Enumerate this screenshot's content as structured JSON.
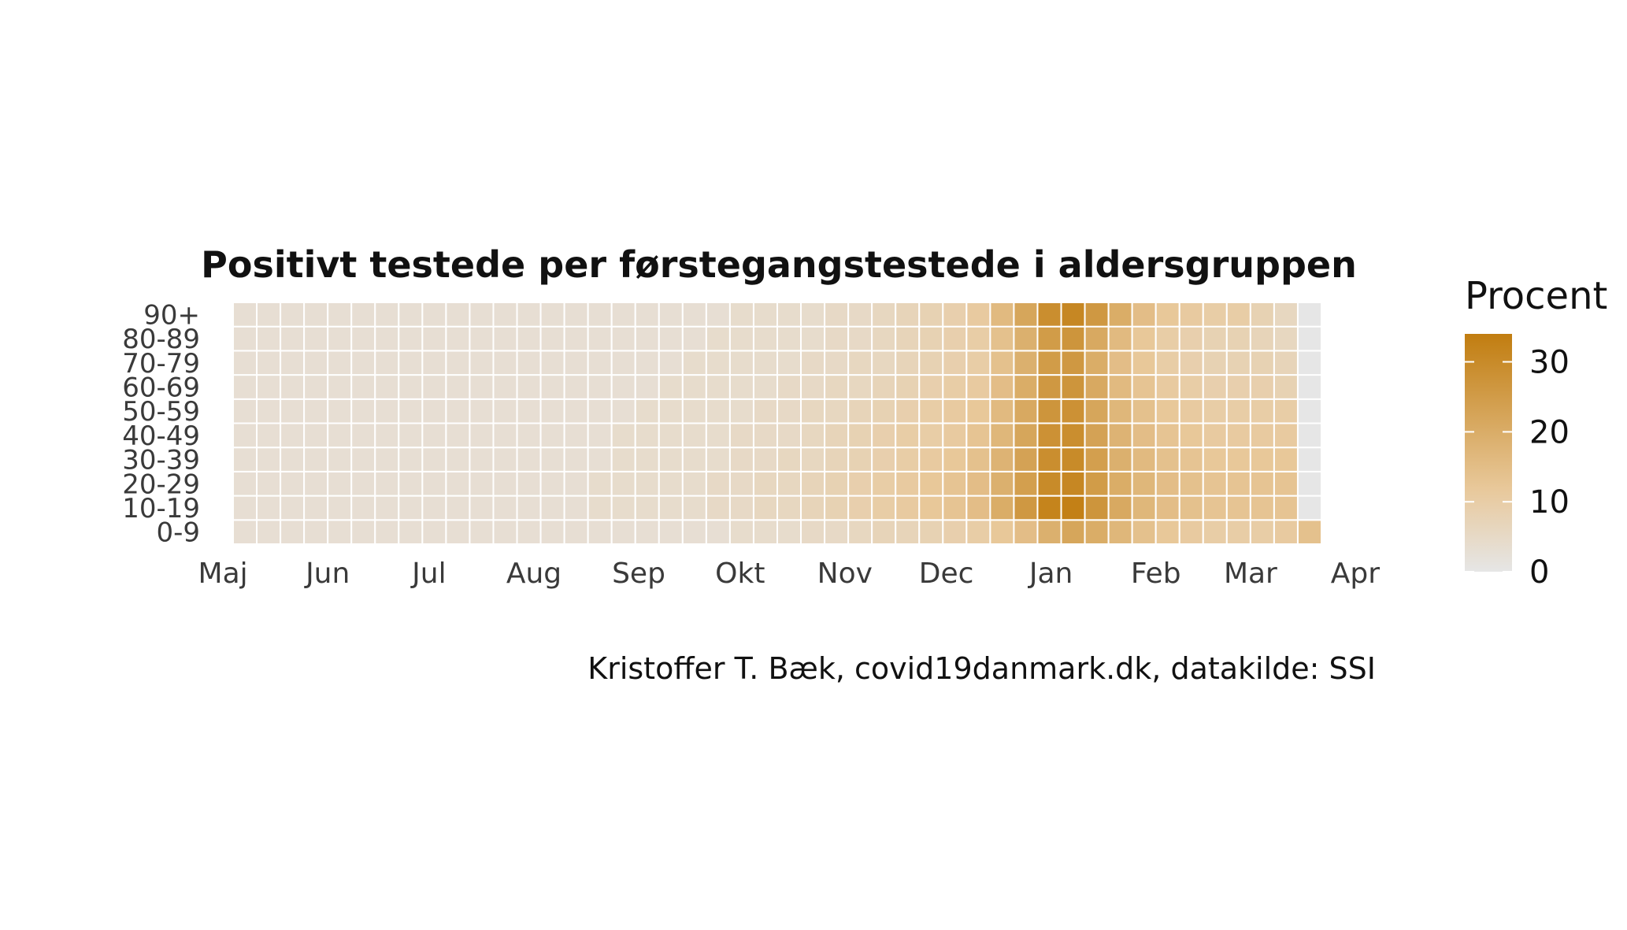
{
  "chart_data": {
    "type": "heatmap",
    "title": "Positivt testede per førstegangstestede i aldersgruppen",
    "caption": "Kristoffer T. Bæk, covid19danmark.dk, datakilde: SSI",
    "xlabel": "",
    "ylabel": "",
    "x_tick_labels": [
      "Maj",
      "Jun",
      "Jul",
      "Aug",
      "Sep",
      "Okt",
      "Nov",
      "Dec",
      "Jan",
      "Feb",
      "Mar",
      "Apr"
    ],
    "x_tick_dates": [
      "2020-05-01",
      "2020-06-01",
      "2020-07-01",
      "2020-08-01",
      "2020-09-01",
      "2020-10-01",
      "2020-11-01",
      "2020-12-01",
      "2021-01-01",
      "2021-02-01",
      "2021-03-01",
      "2021-04-01"
    ],
    "x_weeks": [
      "2020-05-04",
      "2020-05-11",
      "2020-05-18",
      "2020-05-25",
      "2020-06-01",
      "2020-06-08",
      "2020-06-15",
      "2020-06-22",
      "2020-06-29",
      "2020-07-06",
      "2020-07-13",
      "2020-07-20",
      "2020-07-27",
      "2020-08-03",
      "2020-08-10",
      "2020-08-17",
      "2020-08-24",
      "2020-08-31",
      "2020-09-07",
      "2020-09-14",
      "2020-09-21",
      "2020-09-28",
      "2020-10-05",
      "2020-10-12",
      "2020-10-19",
      "2020-10-26",
      "2020-11-02",
      "2020-11-09",
      "2020-11-16",
      "2020-11-23",
      "2020-11-30",
      "2020-12-07",
      "2020-12-14",
      "2020-12-21",
      "2020-12-28",
      "2021-01-04",
      "2021-01-11",
      "2021-01-18",
      "2021-01-25",
      "2021-02-01",
      "2021-02-08",
      "2021-02-15",
      "2021-02-22",
      "2021-03-01",
      "2021-03-08",
      "2021-03-15"
    ],
    "age_groups": [
      "0-9",
      "10-19",
      "20-29",
      "30-39",
      "40-49",
      "50-59",
      "60-69",
      "70-79",
      "80-89",
      "90+"
    ],
    "values": [
      [
        3,
        3,
        3,
        3,
        3,
        3,
        3,
        3,
        3,
        3,
        3,
        3,
        3,
        3,
        3,
        3,
        3,
        3,
        3,
        3,
        3,
        4,
        4,
        4,
        5,
        5,
        6,
        7,
        7,
        8,
        9,
        10,
        12,
        15,
        19,
        22,
        20,
        17,
        14,
        12,
        11,
        10,
        10,
        10,
        11,
        14
      ],
      [
        3,
        3,
        3,
        3,
        3,
        3,
        3,
        3,
        3,
        3,
        3,
        3,
        3,
        3,
        3,
        4,
        4,
        4,
        4,
        4,
        5,
        5,
        6,
        6,
        7,
        8,
        9,
        10,
        11,
        12,
        13,
        15,
        20,
        26,
        32,
        33,
        27,
        21,
        17,
        15,
        14,
        13,
        13,
        13,
        13,
        0
      ],
      [
        3,
        3,
        3,
        3,
        3,
        3,
        3,
        3,
        3,
        3,
        3,
        3,
        3,
        3,
        3,
        4,
        4,
        4,
        4,
        4,
        5,
        5,
        6,
        6,
        7,
        8,
        9,
        10,
        11,
        12,
        13,
        15,
        19,
        24,
        30,
        31,
        25,
        20,
        17,
        15,
        14,
        13,
        13,
        13,
        13,
        0
      ],
      [
        3,
        3,
        3,
        3,
        3,
        3,
        3,
        3,
        3,
        3,
        3,
        3,
        3,
        3,
        3,
        3,
        4,
        4,
        4,
        4,
        4,
        5,
        5,
        6,
        6,
        7,
        8,
        9,
        10,
        11,
        12,
        14,
        18,
        23,
        29,
        30,
        24,
        19,
        16,
        14,
        13,
        12,
        12,
        12,
        12,
        0
      ],
      [
        3,
        3,
        3,
        3,
        3,
        3,
        3,
        3,
        3,
        3,
        3,
        3,
        3,
        3,
        3,
        3,
        4,
        4,
        4,
        4,
        4,
        5,
        5,
        5,
        6,
        7,
        8,
        9,
        10,
        10,
        11,
        13,
        17,
        22,
        28,
        29,
        23,
        18,
        15,
        13,
        12,
        11,
        11,
        11,
        11,
        0
      ],
      [
        3,
        3,
        3,
        3,
        3,
        3,
        3,
        3,
        3,
        3,
        3,
        3,
        3,
        3,
        3,
        3,
        3,
        4,
        4,
        4,
        4,
        4,
        5,
        5,
        6,
        6,
        7,
        8,
        9,
        10,
        11,
        12,
        16,
        21,
        27,
        28,
        22,
        17,
        14,
        12,
        11,
        10,
        10,
        10,
        10,
        0
      ],
      [
        3,
        3,
        3,
        3,
        3,
        3,
        3,
        3,
        3,
        3,
        3,
        3,
        3,
        3,
        3,
        3,
        3,
        3,
        4,
        4,
        4,
        4,
        4,
        5,
        5,
        6,
        6,
        7,
        8,
        9,
        10,
        11,
        15,
        20,
        26,
        27,
        21,
        16,
        13,
        11,
        10,
        9,
        9,
        9,
        8,
        0
      ],
      [
        3,
        3,
        3,
        3,
        3,
        3,
        3,
        3,
        3,
        3,
        3,
        3,
        3,
        3,
        3,
        3,
        3,
        3,
        3,
        4,
        4,
        4,
        4,
        4,
        5,
        5,
        6,
        6,
        7,
        8,
        9,
        10,
        14,
        19,
        25,
        26,
        20,
        15,
        12,
        10,
        9,
        8,
        8,
        8,
        7,
        0
      ],
      [
        3,
        3,
        3,
        3,
        3,
        3,
        3,
        3,
        3,
        3,
        3,
        3,
        3,
        3,
        3,
        3,
        3,
        3,
        3,
        3,
        4,
        4,
        4,
        4,
        4,
        5,
        5,
        6,
        7,
        8,
        9,
        10,
        14,
        19,
        25,
        27,
        21,
        16,
        12,
        10,
        9,
        8,
        8,
        7,
        6,
        0
      ],
      [
        3,
        3,
        3,
        3,
        3,
        3,
        3,
        3,
        3,
        3,
        3,
        3,
        3,
        3,
        3,
        3,
        3,
        3,
        3,
        3,
        3,
        4,
        4,
        4,
        4,
        5,
        5,
        6,
        7,
        8,
        9,
        11,
        16,
        22,
        29,
        31,
        26,
        20,
        15,
        12,
        11,
        10,
        10,
        8,
        6,
        0
      ]
    ],
    "legend": {
      "title": "Procent",
      "ticks": [
        0,
        10,
        20,
        30
      ],
      "min": 0,
      "max": 34
    },
    "colors": {
      "low": "#e6e6e6",
      "mid": "#e8c89a",
      "high": "#c17d10",
      "tile_border": "#ffffff"
    }
  }
}
